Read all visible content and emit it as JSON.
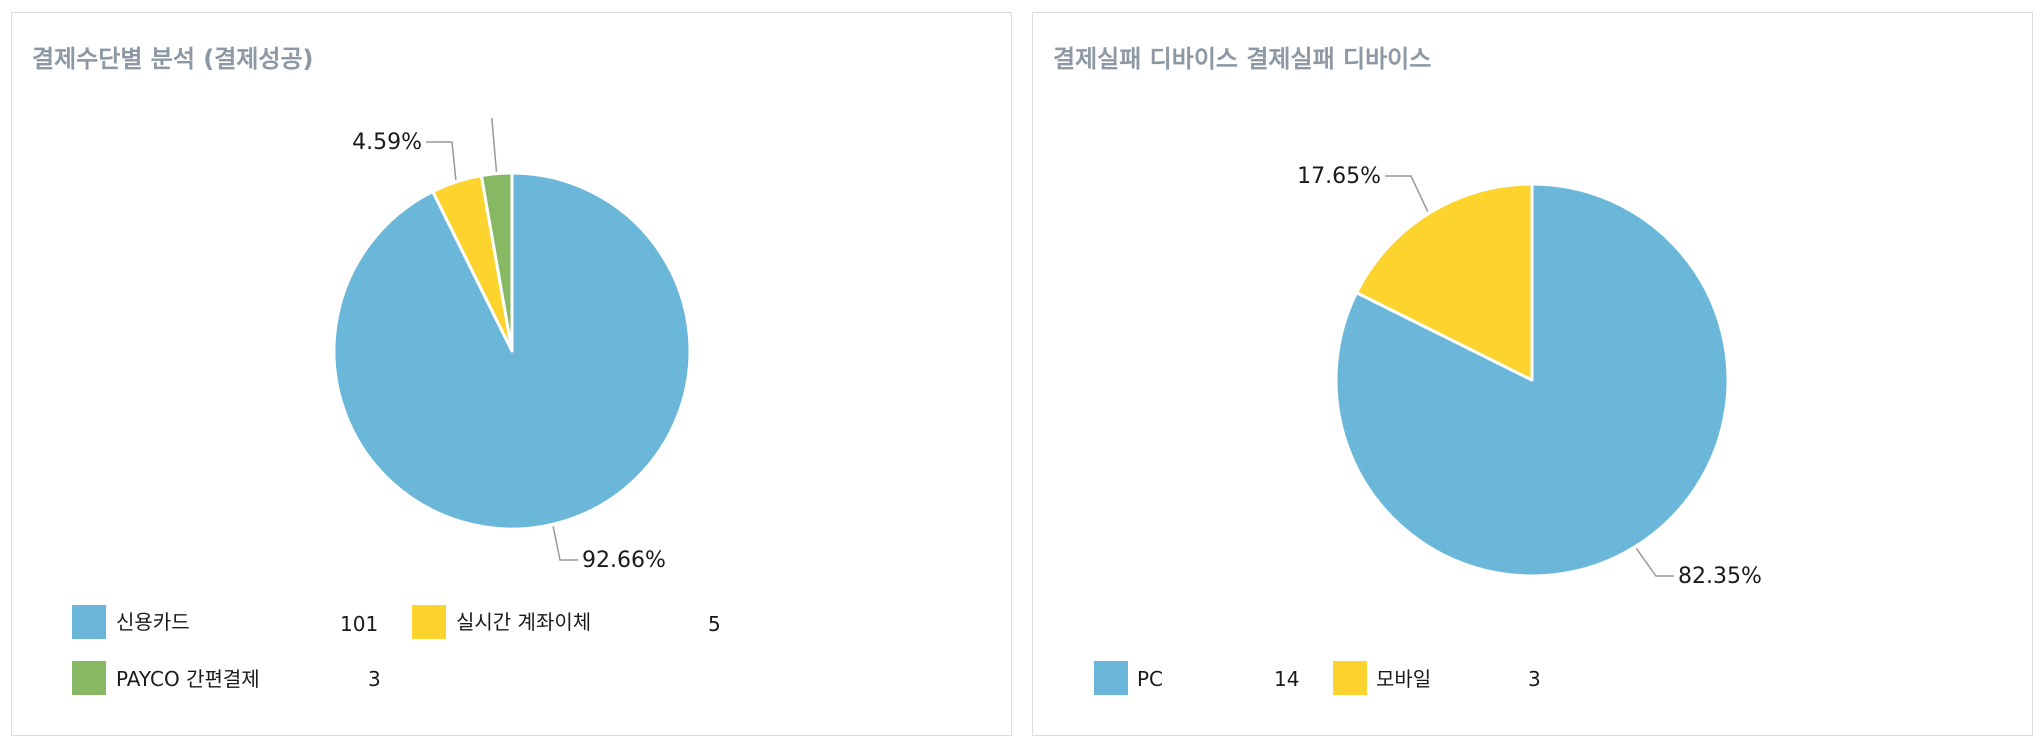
{
  "colors": {
    "blue": "#6bb7da",
    "yellow": "#fdd32e",
    "green": "#87b964",
    "leader": "#999999",
    "slice_border": "#ffffff"
  },
  "chart_data": [
    {
      "type": "pie",
      "title": "결제수단별 분석 (결제성공)",
      "slices": [
        {
          "name": "신용카드",
          "value": 101,
          "label": "92.66%",
          "color": "#6bb7da"
        },
        {
          "name": "실시간 계좌이체",
          "value": 5,
          "label": "4.59%",
          "color": "#fdd32e"
        },
        {
          "name": "PAYCO 간편결제",
          "value": 3,
          "label": "",
          "color": "#87b964"
        }
      ],
      "legend_position": "bottom"
    },
    {
      "type": "pie",
      "title": "결제실패 디바이스 결제실패 디바이스",
      "slices": [
        {
          "name": "PC",
          "value": 14,
          "label": "82.35%",
          "color": "#6bb7da"
        },
        {
          "name": "모바일",
          "value": 3,
          "label": "17.65%",
          "color": "#fdd32e"
        }
      ],
      "legend_position": "bottom"
    }
  ]
}
